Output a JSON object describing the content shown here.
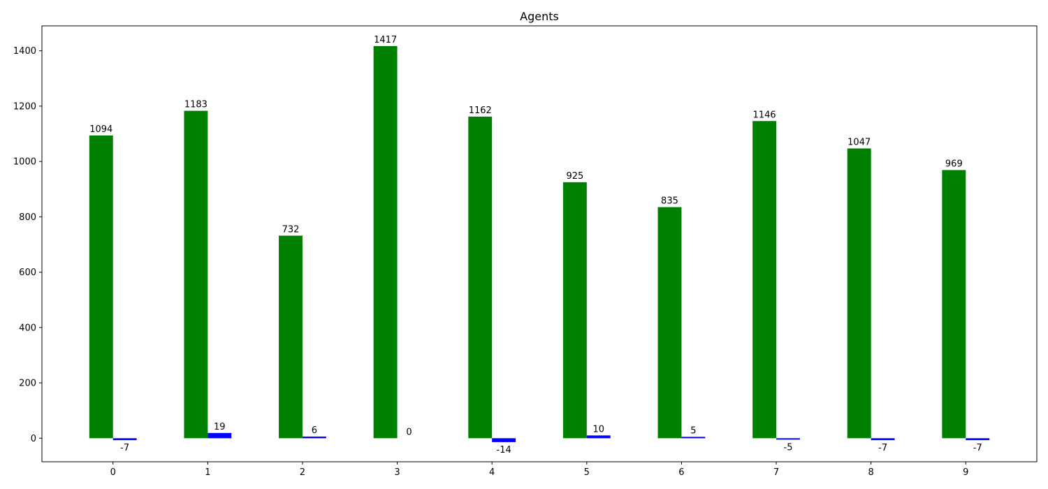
{
  "chart_data": {
    "type": "bar",
    "title": "Agents",
    "xlabel": "",
    "ylabel": "",
    "categories": [
      "0",
      "1",
      "2",
      "3",
      "4",
      "5",
      "6",
      "7",
      "8",
      "9"
    ],
    "series": [
      {
        "values": [
          1094,
          1183,
          732,
          1417,
          1162,
          925,
          835,
          1146,
          1047,
          969
        ],
        "color": "#008000"
      },
      {
        "values": [
          -7,
          19,
          6,
          0,
          -14,
          10,
          5,
          -5,
          -7,
          -7
        ],
        "color": "#0000ff"
      }
    ],
    "ylim": [
      -85,
      1490
    ],
    "yticks": [
      0,
      200,
      400,
      600,
      800,
      1000,
      1200,
      1400
    ],
    "grid": false
  }
}
